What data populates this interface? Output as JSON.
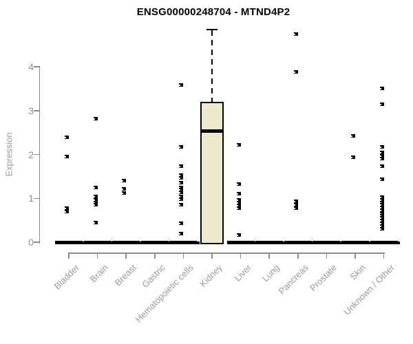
{
  "chart_data": {
    "type": "boxplot",
    "title": "ENSG00000248704 - MTND4P2",
    "ylabel": "Expression",
    "xlabel": "",
    "y_ticks": [
      0,
      1,
      2,
      3,
      4
    ],
    "ylim": [
      0,
      4.9
    ],
    "grid": false,
    "legend": "none",
    "categories": [
      "Bladder",
      "Brain",
      "Breast",
      "Gastric",
      "Hematopoietic cells",
      "Kidney",
      "Liver",
      "Lung",
      "Pancreas",
      "Prostate",
      "Skin",
      "Unknown / Other"
    ],
    "groups": [
      {
        "name": "Bladder",
        "median": 0,
        "points": [
          2.4,
          1.96,
          0.77,
          0.7
        ]
      },
      {
        "name": "Brain",
        "median": 0,
        "points": [
          2.82,
          1.24,
          1.05,
          0.97,
          0.9,
          0.85,
          0.45
        ]
      },
      {
        "name": "Breast",
        "median": 0,
        "points": [
          1.41,
          1.22,
          1.12
        ]
      },
      {
        "name": "Gastric",
        "median": 0,
        "points": []
      },
      {
        "name": "Hematopoietic cells",
        "median": 0,
        "points": [
          3.59,
          2.18,
          1.74,
          1.53,
          1.46,
          1.35,
          1.25,
          1.2,
          1.14,
          1.04,
          0.98,
          0.86,
          0.43,
          0.19
        ]
      },
      {
        "name": "Kidney",
        "box": {
          "q1": 0,
          "median": 2.54,
          "q3": 3.2,
          "whisker_low": 0,
          "whisker_high": 4.85
        },
        "points": []
      },
      {
        "name": "Liver",
        "median": 0,
        "points": [
          2.22,
          1.32,
          1.1,
          0.97,
          0.9,
          0.84,
          0.78,
          0.17
        ]
      },
      {
        "name": "Lung",
        "median": 0,
        "points": []
      },
      {
        "name": "Pancreas",
        "median": 0,
        "points": [
          4.74,
          3.89,
          0.94,
          0.85,
          0.78
        ]
      },
      {
        "name": "Prostate",
        "median": 0,
        "points": []
      },
      {
        "name": "Skin",
        "median": 0,
        "points": [
          2.43,
          1.94
        ]
      },
      {
        "name": "Unknown / Other",
        "median": 0,
        "points": [
          3.5,
          3.14,
          2.17,
          2.04,
          1.97,
          1.9,
          1.73,
          1.44,
          1.02,
          0.96,
          0.9,
          0.85,
          0.79,
          0.73,
          0.65,
          0.6,
          0.55,
          0.49,
          0.43,
          0.37,
          0.31
        ]
      }
    ],
    "colors": {
      "box_fill": "#EDE9CD",
      "box_border": "#000000",
      "median_line": "#000000",
      "marker": "#000000",
      "zero_bar": "#000000",
      "axis_line": "#8a8a8a",
      "tick_text": "#8e8e8e",
      "category_text": "#9a9a9a",
      "title_text": "#000000",
      "background": "#ffffff"
    }
  }
}
